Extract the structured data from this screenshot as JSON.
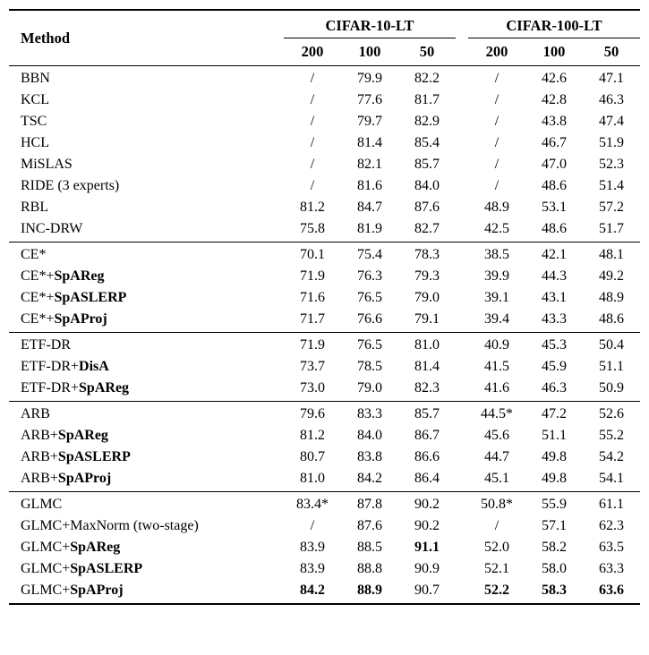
{
  "table": {
    "header": {
      "method_label": "Method",
      "groups": [
        {
          "label": "CIFAR-10-LT",
          "subcols": [
            "200",
            "100",
            "50"
          ]
        },
        {
          "label": "CIFAR-100-LT",
          "subcols": [
            "200",
            "100",
            "50"
          ]
        }
      ]
    },
    "groups": [
      {
        "rows": [
          {
            "m": "BBN",
            "vals": [
              "/",
              "79.9",
              "82.2",
              "/",
              "42.6",
              "47.1"
            ]
          },
          {
            "m": "KCL",
            "vals": [
              "/",
              "77.6",
              "81.7",
              "/",
              "42.8",
              "46.3"
            ]
          },
          {
            "m": "TSC",
            "vals": [
              "/",
              "79.7",
              "82.9",
              "/",
              "43.8",
              "47.4"
            ]
          },
          {
            "m": "HCL",
            "vals": [
              "/",
              "81.4",
              "85.4",
              "/",
              "46.7",
              "51.9"
            ]
          },
          {
            "m": "MiSLAS",
            "vals": [
              "/",
              "82.1",
              "85.7",
              "/",
              "47.0",
              "52.3"
            ]
          },
          {
            "m": "RIDE (3 experts)",
            "vals": [
              "/",
              "81.6",
              "84.0",
              "/",
              "48.6",
              "51.4"
            ]
          },
          {
            "m": "RBL",
            "vals": [
              "81.2",
              "84.7",
              "87.6",
              "48.9",
              "53.1",
              "57.2"
            ]
          },
          {
            "m": "INC-DRW",
            "vals": [
              "75.8",
              "81.9",
              "82.7",
              "42.5",
              "48.6",
              "51.7"
            ]
          }
        ]
      },
      {
        "rows": [
          {
            "m": "CE*",
            "vals": [
              "70.1",
              "75.4",
              "78.3",
              "38.5",
              "42.1",
              "48.1"
            ]
          },
          {
            "m": "CE*+",
            "mb": "SpAReg",
            "vals": [
              "71.9",
              "76.3",
              "79.3",
              "39.9",
              "44.3",
              "49.2"
            ]
          },
          {
            "m": "CE*+",
            "mb": "SpASLERP",
            "vals": [
              "71.6",
              "76.5",
              "79.0",
              "39.1",
              "43.1",
              "48.9"
            ]
          },
          {
            "m": "CE*+",
            "mb": "SpAProj",
            "vals": [
              "71.7",
              "76.6",
              "79.1",
              "39.4",
              "43.3",
              "48.6"
            ]
          }
        ]
      },
      {
        "rows": [
          {
            "m": "ETF-DR",
            "vals": [
              "71.9",
              "76.5",
              "81.0",
              "40.9",
              "45.3",
              "50.4"
            ]
          },
          {
            "m": "ETF-DR+",
            "mb": "DisA",
            "vals": [
              "73.7",
              "78.5",
              "81.4",
              "41.5",
              "45.9",
              "51.1"
            ]
          },
          {
            "m": "ETF-DR+",
            "mb": "SpAReg",
            "vals": [
              "73.0",
              "79.0",
              "82.3",
              "41.6",
              "46.3",
              "50.9"
            ]
          }
        ]
      },
      {
        "rows": [
          {
            "m": "ARB",
            "vals": [
              "79.6",
              "83.3",
              "85.7",
              "44.5*",
              "47.2",
              "52.6"
            ]
          },
          {
            "m": "ARB+",
            "mb": "SpAReg",
            "vals": [
              "81.2",
              "84.0",
              "86.7",
              "45.6",
              "51.1",
              "55.2"
            ]
          },
          {
            "m": "ARB+",
            "mb": "SpASLERP",
            "vals": [
              "80.7",
              "83.8",
              "86.6",
              "44.7",
              "49.8",
              "54.2"
            ]
          },
          {
            "m": "ARB+",
            "mb": "SpAProj",
            "vals": [
              "81.0",
              "84.2",
              "86.4",
              "45.1",
              "49.8",
              "54.1"
            ]
          }
        ]
      },
      {
        "rows": [
          {
            "m": "GLMC",
            "vals": [
              "83.4*",
              "87.8",
              "90.2",
              "50.8*",
              "55.9",
              "61.1"
            ]
          },
          {
            "m": "GLMC+MaxNorm (two-stage)",
            "vals": [
              "/",
              "87.6",
              "90.2",
              "/",
              "57.1",
              "62.3"
            ]
          },
          {
            "m": "GLMC+",
            "mb": "SpAReg",
            "vals": [
              "83.9",
              "88.5",
              "91.1",
              "52.0",
              "58.2",
              "63.5"
            ],
            "bold": [
              2
            ]
          },
          {
            "m": "GLMC+",
            "mb": "SpASLERP",
            "vals": [
              "83.9",
              "88.8",
              "90.9",
              "52.1",
              "58.0",
              "63.3"
            ]
          },
          {
            "m": "GLMC+",
            "mb": "SpAProj",
            "vals": [
              "84.2",
              "88.9",
              "90.7",
              "52.2",
              "58.3",
              "63.6"
            ],
            "bold": [
              0,
              1,
              3,
              4,
              5
            ]
          }
        ]
      }
    ]
  }
}
